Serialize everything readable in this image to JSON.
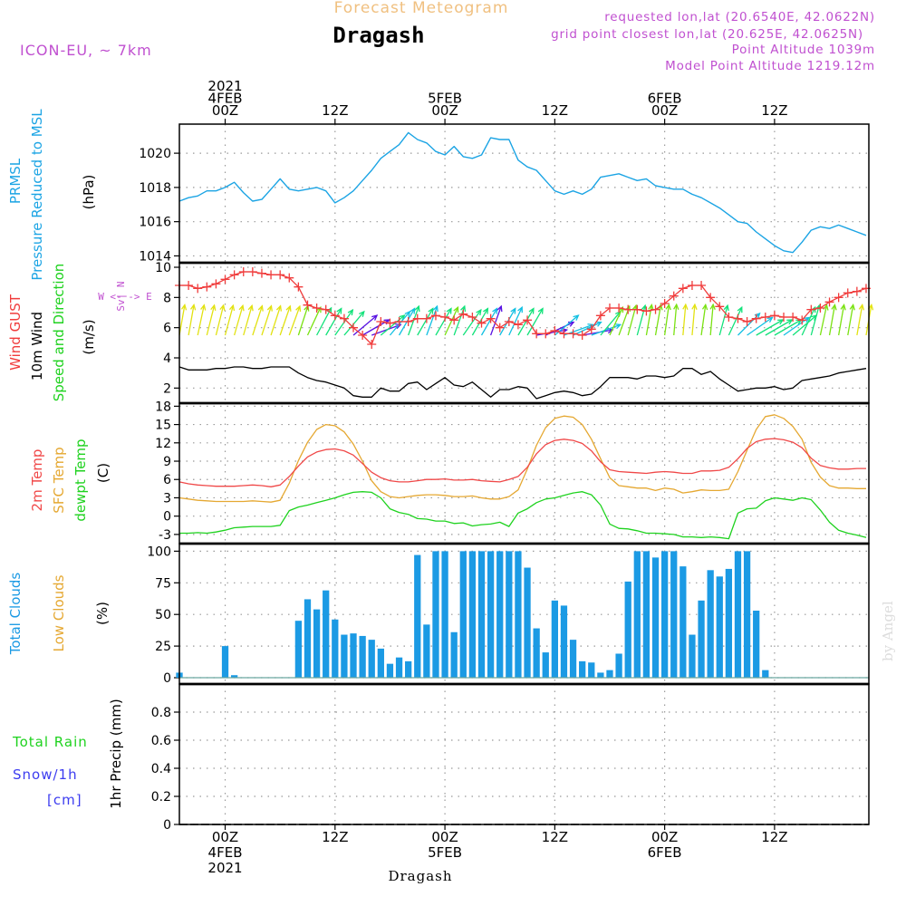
{
  "header": {
    "subtitle": "Forecast Meteogram",
    "title": "Dragash",
    "model": "ICON-EU, ~ 7km",
    "requested": "requested lon,lat (20.6540E, 42.0622N)",
    "grid_point": "grid point closest lon,lat (20.625E, 42.0625N)",
    "point_altitude": "Point Altitude 1039m",
    "model_altitude": "Model Point Altitude 1219.12m",
    "watermark": "by Angel",
    "bottom_label": "Dragash"
  },
  "colors": {
    "pressure": "#1ba4e4",
    "gust": "#f03c3c",
    "wind": "#000000",
    "temp2m": "#f04848",
    "sfc_temp": "#e5a832",
    "dewpoint": "#1ed21e",
    "clouds_total": "#1b9ae4",
    "clouds_low": "#e5a832",
    "rain": "#1ed21e",
    "snow": "#3c3cf0",
    "header_purple": "#c050d0",
    "subtitle_color": "#f0c080"
  },
  "time_axis": {
    "top_labels": [
      {
        "time": 0,
        "lines": [
          "2021",
          "4FEB",
          "00Z"
        ]
      },
      {
        "time": 12,
        "lines": [
          "12Z"
        ]
      },
      {
        "time": 24,
        "lines": [
          "5FEB",
          "00Z"
        ]
      },
      {
        "time": 36,
        "lines": [
          "12Z"
        ]
      },
      {
        "time": 48,
        "lines": [
          "6FEB",
          "00Z"
        ]
      },
      {
        "time": 60,
        "lines": [
          "12Z"
        ]
      }
    ],
    "bottom_labels": [
      {
        "time": 0,
        "lines": [
          "00Z",
          "4FEB",
          "2021"
        ]
      },
      {
        "time": 12,
        "lines": [
          "12Z"
        ]
      },
      {
        "time": 24,
        "lines": [
          "00Z",
          "5FEB"
        ]
      },
      {
        "time": 36,
        "lines": [
          "12Z"
        ]
      },
      {
        "time": 48,
        "lines": [
          "00Z",
          "6FEB"
        ]
      },
      {
        "time": 60,
        "lines": [
          "12Z"
        ]
      }
    ]
  },
  "chart_data": [
    {
      "type": "line",
      "id": "pressure",
      "ylabel_left": [
        "PRMSL",
        "Pressure Reduced to MSL"
      ],
      "unit": "(hPa)",
      "ylim": [
        1013.6,
        1021.7
      ],
      "yticks": [
        1014,
        1016,
        1018,
        1020
      ],
      "grid": true,
      "x": [
        -5,
        -4,
        -3,
        -2,
        -1,
        0,
        1,
        2,
        3,
        4,
        5,
        6,
        7,
        8,
        9,
        10,
        11,
        12,
        13,
        14,
        15,
        16,
        17,
        18,
        19,
        20,
        21,
        22,
        23,
        24,
        25,
        26,
        27,
        28,
        29,
        30,
        31,
        32,
        33,
        34,
        35,
        36,
        37,
        38,
        39,
        40,
        41,
        42,
        43,
        44,
        45,
        46,
        47,
        48,
        49,
        50,
        51,
        52,
        53,
        54,
        55,
        56,
        57,
        58,
        59,
        60,
        61,
        62,
        63,
        64,
        65,
        66,
        67,
        68,
        69,
        70
      ],
      "series": [
        {
          "values": [
            1017.2,
            1017.4,
            1017.5,
            1017.8,
            1017.8,
            1018.0,
            1018.3,
            1017.7,
            1017.2,
            1017.3,
            1017.9,
            1018.5,
            1017.9,
            1017.8,
            1017.9,
            1018.0,
            1017.8,
            1017.1,
            1017.4,
            1017.8,
            1018.4,
            1019.0,
            1019.7,
            1020.1,
            1020.5,
            1021.2,
            1020.8,
            1020.6,
            1020.1,
            1019.9,
            1020.4,
            1019.8,
            1019.7,
            1019.9,
            1020.9,
            1020.8,
            1020.8,
            1019.6,
            1019.2,
            1019.0,
            1018.4,
            1017.8,
            1017.6,
            1017.8,
            1017.6,
            1017.9,
            1018.6,
            1018.7,
            1018.8,
            1018.6,
            1018.4,
            1018.5,
            1018.1,
            1018.0,
            1017.9,
            1017.9,
            1017.6,
            1017.4,
            1017.1,
            1016.8,
            1016.4,
            1016.0,
            1015.9,
            1015.4,
            1015.0,
            1014.6,
            1014.3,
            1014.2,
            1014.8,
            1015.5,
            1015.7,
            1015.6,
            1015.8,
            1015.6,
            1015.4,
            1015.2
          ]
        }
      ]
    },
    {
      "type": "line",
      "id": "wind",
      "ylabel_left": [
        "Wind GUST",
        "10m Wind",
        "Speed and Direction"
      ],
      "unit": "(m/s)",
      "compass": [
        "N",
        "^",
        "|",
        "W <- -> E",
        "|",
        "v",
        "S"
      ],
      "ylim": [
        1.0,
        10.3
      ],
      "yticks": [
        2,
        4,
        6,
        8,
        10
      ],
      "grid": true,
      "x": [
        -5,
        -4,
        -3,
        -2,
        -1,
        0,
        1,
        2,
        3,
        4,
        5,
        6,
        7,
        8,
        9,
        10,
        11,
        12,
        13,
        14,
        15,
        16,
        17,
        18,
        19,
        20,
        21,
        22,
        23,
        24,
        25,
        26,
        27,
        28,
        29,
        30,
        31,
        32,
        33,
        34,
        35,
        36,
        37,
        38,
        39,
        40,
        41,
        42,
        43,
        44,
        45,
        46,
        47,
        48,
        49,
        50,
        51,
        52,
        53,
        54,
        55,
        56,
        57,
        58,
        59,
        60,
        61,
        62,
        63,
        64,
        65,
        66,
        67,
        68,
        69,
        70
      ],
      "series": [
        {
          "name": "Wind GUST",
          "marker": "+",
          "values": [
            8.8,
            8.8,
            8.6,
            8.7,
            8.9,
            9.2,
            9.5,
            9.7,
            9.7,
            9.6,
            9.5,
            9.5,
            9.3,
            8.7,
            7.5,
            7.3,
            7.2,
            6.8,
            6.6,
            6.0,
            5.5,
            4.9,
            6.4,
            6.3,
            6.4,
            6.4,
            6.6,
            6.6,
            6.8,
            6.7,
            6.5,
            6.9,
            6.7,
            6.3,
            6.6,
            6.0,
            6.4,
            6.2,
            6.5,
            5.6,
            5.6,
            5.8,
            5.6,
            5.6,
            5.5,
            5.9,
            6.8,
            7.3,
            7.3,
            7.2,
            7.2,
            7.1,
            7.2,
            7.6,
            8.1,
            8.6,
            8.8,
            8.8,
            8.0,
            7.4,
            6.7,
            6.6,
            6.4,
            6.6,
            6.7,
            6.8,
            6.7,
            6.7,
            6.5,
            7.2,
            7.3,
            7.7,
            8.0,
            8.3,
            8.4,
            8.6
          ]
        },
        {
          "name": "10m Wind",
          "values": [
            3.4,
            3.2,
            3.2,
            3.2,
            3.3,
            3.3,
            3.4,
            3.4,
            3.3,
            3.3,
            3.4,
            3.4,
            3.4,
            3.0,
            2.7,
            2.5,
            2.4,
            2.2,
            2.0,
            1.5,
            1.4,
            1.4,
            2.0,
            1.8,
            1.8,
            2.3,
            2.4,
            1.9,
            2.3,
            2.7,
            2.2,
            2.1,
            2.4,
            1.9,
            1.4,
            1.9,
            1.9,
            2.1,
            2.0,
            1.3,
            1.5,
            1.7,
            1.8,
            1.7,
            1.5,
            1.6,
            2.1,
            2.7,
            2.7,
            2.7,
            2.6,
            2.8,
            2.8,
            2.7,
            2.8,
            3.3,
            3.3,
            2.9,
            3.1,
            2.6,
            2.2,
            1.8,
            1.9,
            2.0,
            2.0,
            2.1,
            1.9,
            2.0,
            2.5,
            2.6,
            2.7,
            2.8,
            3.0,
            3.1,
            3.2,
            3.3
          ]
        }
      ],
      "arrows": {
        "x": [
          -5,
          -4,
          -3,
          -2,
          -1,
          0,
          1,
          2,
          3,
          4,
          5,
          6,
          7,
          8,
          9,
          10,
          11,
          12,
          13,
          14,
          15,
          16,
          17,
          18,
          19,
          20,
          21,
          22,
          23,
          24,
          25,
          26,
          27,
          28,
          29,
          30,
          31,
          32,
          33,
          34,
          35,
          36,
          37,
          38,
          39,
          40,
          41,
          42,
          43,
          44,
          45,
          46,
          47,
          48,
          49,
          50,
          51,
          52,
          53,
          54,
          55,
          56,
          57,
          58,
          59,
          60,
          61,
          62,
          63,
          64,
          65,
          66,
          67,
          68,
          69,
          70
        ],
        "dir_to_deg": [
          10,
          10,
          12,
          14,
          14,
          15,
          16,
          16,
          18,
          18,
          18,
          19,
          20,
          18,
          25,
          28,
          30,
          35,
          40,
          50,
          60,
          70,
          50,
          40,
          30,
          20,
          30,
          20,
          30,
          25,
          20,
          35,
          30,
          30,
          20,
          30,
          25,
          30,
          30,
          80,
          65,
          50,
          70,
          65,
          80,
          70,
          40,
          25,
          20,
          15,
          15,
          10,
          10,
          8,
          5,
          5,
          5,
          8,
          5,
          15,
          25,
          45,
          55,
          60,
          60,
          60,
          55,
          50,
          25,
          15,
          12,
          10,
          10,
          10,
          10,
          10
        ]
      }
    },
    {
      "type": "line",
      "id": "temperature",
      "ylabel_left": [
        "2m Temp",
        "SFC Temp",
        "dewpt Temp"
      ],
      "unit": "(C)",
      "ylim": [
        -4.5,
        18.5
      ],
      "yticks": [
        -3,
        0,
        3,
        6,
        9,
        12,
        15,
        18
      ],
      "grid": true,
      "x": [
        -5,
        -4,
        -3,
        -2,
        -1,
        0,
        1,
        2,
        3,
        4,
        5,
        6,
        7,
        8,
        9,
        10,
        11,
        12,
        13,
        14,
        15,
        16,
        17,
        18,
        19,
        20,
        21,
        22,
        23,
        24,
        25,
        26,
        27,
        28,
        29,
        30,
        31,
        32,
        33,
        34,
        35,
        36,
        37,
        38,
        39,
        40,
        41,
        42,
        43,
        44,
        45,
        46,
        47,
        48,
        49,
        50,
        51,
        52,
        53,
        54,
        55,
        56,
        57,
        58,
        59,
        60,
        61,
        62,
        63,
        64,
        65,
        66,
        67,
        68,
        69,
        70
      ],
      "series": [
        {
          "name": "2m Temp",
          "values": [
            5.6,
            5.3,
            5.1,
            5.0,
            4.9,
            4.9,
            4.9,
            5.0,
            5.1,
            5.0,
            4.8,
            5.1,
            6.5,
            8.2,
            9.7,
            10.5,
            10.9,
            11.0,
            10.7,
            10.0,
            8.6,
            7.2,
            6.3,
            5.8,
            5.6,
            5.6,
            5.8,
            6.0,
            6.0,
            6.1,
            5.9,
            5.9,
            6.0,
            5.8,
            5.7,
            5.6,
            6.0,
            6.5,
            8.0,
            10.2,
            11.7,
            12.4,
            12.6,
            12.4,
            11.9,
            10.7,
            8.9,
            7.6,
            7.3,
            7.2,
            7.1,
            7.0,
            7.2,
            7.3,
            7.2,
            7.0,
            7.0,
            7.4,
            7.4,
            7.5,
            8.0,
            9.4,
            11.1,
            12.2,
            12.6,
            12.7,
            12.5,
            12.1,
            11.2,
            9.5,
            8.3,
            7.9,
            7.7,
            7.7,
            7.8,
            7.8
          ]
        },
        {
          "name": "SFC Temp",
          "values": [
            3.0,
            2.8,
            2.6,
            2.5,
            2.4,
            2.4,
            2.4,
            2.4,
            2.5,
            2.4,
            2.3,
            2.6,
            5.4,
            9.1,
            12.1,
            14.2,
            15.0,
            14.8,
            13.8,
            11.8,
            9.0,
            5.8,
            4.0,
            3.2,
            3.0,
            3.2,
            3.4,
            3.5,
            3.5,
            3.4,
            3.2,
            3.2,
            3.3,
            3.0,
            2.8,
            2.8,
            3.2,
            4.3,
            7.7,
            11.6,
            14.5,
            16.0,
            16.4,
            16.2,
            15.0,
            12.6,
            9.4,
            6.3,
            5.0,
            4.8,
            4.6,
            4.6,
            4.2,
            4.6,
            4.4,
            3.8,
            4.0,
            4.3,
            4.2,
            4.2,
            4.4,
            7.3,
            10.8,
            14.2,
            16.3,
            16.6,
            16.0,
            14.7,
            12.6,
            8.8,
            6.4,
            5.0,
            4.6,
            4.6,
            4.5,
            4.5
          ]
        },
        {
          "name": "dewpt Temp",
          "values": [
            -2.8,
            -2.8,
            -2.7,
            -2.8,
            -2.6,
            -2.3,
            -1.9,
            -1.8,
            -1.7,
            -1.7,
            -1.7,
            -1.5,
            0.9,
            1.5,
            1.8,
            2.2,
            2.6,
            3.0,
            3.5,
            3.9,
            4.0,
            3.9,
            3.0,
            1.2,
            0.6,
            0.3,
            -0.4,
            -0.5,
            -0.8,
            -0.8,
            -1.2,
            -1.1,
            -1.6,
            -1.4,
            -1.3,
            -1.0,
            -1.7,
            0.5,
            1.2,
            2.2,
            2.8,
            3.0,
            3.4,
            3.8,
            4.0,
            3.5,
            1.8,
            -1.3,
            -2.0,
            -2.1,
            -2.4,
            -2.8,
            -2.8,
            -2.9,
            -3.0,
            -3.4,
            -3.4,
            -3.5,
            -3.4,
            -3.5,
            -3.7,
            0.5,
            1.2,
            1.3,
            2.5,
            3.0,
            2.8,
            2.6,
            3.0,
            2.7,
            1.0,
            -1.0,
            -2.3,
            -2.8,
            -3.1,
            -3.5
          ]
        }
      ]
    },
    {
      "type": "bar",
      "id": "clouds",
      "ylabel_left": [
        "Total Clouds",
        "Low Clouds"
      ],
      "unit": "(%)",
      "ylim": [
        -5,
        106
      ],
      "yticks": [
        0,
        25,
        50,
        75,
        100
      ],
      "grid": true,
      "x": [
        -5,
        -4,
        -3,
        -2,
        -1,
        0,
        1,
        2,
        3,
        4,
        5,
        6,
        7,
        8,
        9,
        10,
        11,
        12,
        13,
        14,
        15,
        16,
        17,
        18,
        19,
        20,
        21,
        22,
        23,
        24,
        25,
        26,
        27,
        28,
        29,
        30,
        31,
        32,
        33,
        34,
        35,
        36,
        37,
        38,
        39,
        40,
        41,
        42,
        43,
        44,
        45,
        46,
        47,
        48,
        49,
        50,
        51,
        52,
        53,
        54,
        55,
        56,
        57,
        58,
        59,
        60,
        61,
        62,
        63,
        64,
        65,
        66,
        67,
        68,
        69,
        70
      ],
      "series": [
        {
          "name": "Total Clouds",
          "values": [
            4,
            0,
            0,
            0,
            0,
            25,
            2,
            0,
            0,
            0,
            0,
            0,
            0,
            45,
            62,
            54,
            69,
            46,
            34,
            35,
            33,
            30,
            23,
            11,
            16,
            13,
            97,
            42,
            100,
            100,
            36,
            100,
            100,
            100,
            100,
            100,
            100,
            100,
            87,
            39,
            20,
            61,
            57,
            30,
            13,
            12,
            4,
            6,
            19,
            76,
            100,
            100,
            95,
            100,
            100,
            88,
            34,
            61,
            85,
            80,
            86,
            100,
            100,
            53,
            6,
            0,
            0,
            0,
            0,
            0,
            0,
            0,
            0,
            0,
            0,
            0
          ]
        }
      ]
    },
    {
      "type": "bar",
      "id": "precip",
      "ylabel_left": [
        "Total Rain",
        "Snow/1h",
        "[cm]"
      ],
      "unit": "1hr Precip (mm)",
      "ylim": [
        0,
        1.0
      ],
      "yticks": [
        0,
        0.2,
        0.4,
        0.6,
        0.8
      ],
      "grid": true,
      "x": [],
      "series": [
        {
          "name": "Total Rain",
          "values": []
        },
        {
          "name": "Snow/1h",
          "values": []
        }
      ]
    }
  ]
}
